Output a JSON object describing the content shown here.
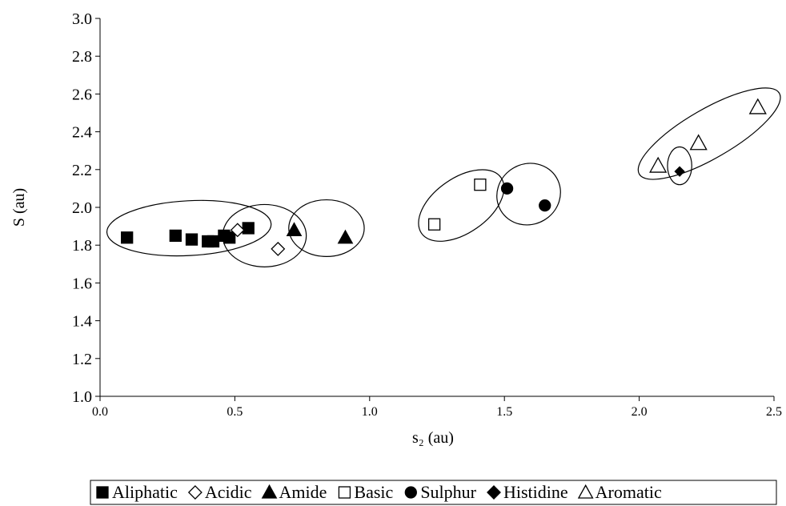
{
  "chart_data": {
    "type": "scatter",
    "xlabel": "s₂ (au)",
    "ylabel": "S (au)",
    "xlim": [
      0.0,
      2.5
    ],
    "ylim": [
      1.0,
      3.0
    ],
    "xticks": [
      "0.0",
      "0.5",
      "1.0",
      "1.5",
      "2.0",
      "2.5"
    ],
    "yticks": [
      "1.0",
      "1.2",
      "1.4",
      "1.6",
      "1.8",
      "2.0",
      "2.2",
      "2.4",
      "2.6",
      "2.8",
      "3.0"
    ],
    "grid": false,
    "legend_position": "bottom",
    "series": [
      {
        "name": "Aliphatic",
        "marker": "square-filled",
        "x": [
          0.1,
          0.28,
          0.34,
          0.4,
          0.42,
          0.46,
          0.48,
          0.55
        ],
        "y": [
          1.84,
          1.85,
          1.83,
          1.82,
          1.82,
          1.85,
          1.84,
          1.89
        ]
      },
      {
        "name": "Acidic",
        "marker": "diamond-open",
        "x": [
          0.51,
          0.66
        ],
        "y": [
          1.88,
          1.78
        ]
      },
      {
        "name": "Amide",
        "marker": "triangle-filled",
        "x": [
          0.72,
          0.91
        ],
        "y": [
          1.88,
          1.84
        ]
      },
      {
        "name": "Basic",
        "marker": "square-open",
        "x": [
          1.24,
          1.41
        ],
        "y": [
          1.91,
          2.12
        ]
      },
      {
        "name": "Sulphur",
        "marker": "circle-filled",
        "x": [
          1.51,
          1.65
        ],
        "y": [
          2.1,
          2.01
        ]
      },
      {
        "name": "Histidine",
        "marker": "diamond-filled",
        "x": [
          2.15
        ],
        "y": [
          2.19
        ]
      },
      {
        "name": "Aromatic",
        "marker": "triangle-open",
        "x": [
          2.07,
          2.22,
          2.44
        ],
        "y": [
          2.22,
          2.34,
          2.53
        ]
      }
    ],
    "group_ellipses": [
      {
        "group": "Aliphatic",
        "cx": 0.33,
        "cy": 1.89,
        "rx": 0.305,
        "ry": 0.145,
        "angle": -3
      },
      {
        "group": "Acidic",
        "cx": 0.61,
        "cy": 1.85,
        "rx": 0.155,
        "ry": 0.165,
        "angle": 0
      },
      {
        "group": "Amide",
        "cx": 0.84,
        "cy": 1.89,
        "rx": 0.14,
        "ry": 0.15,
        "angle": 0
      },
      {
        "group": "Basic",
        "cx": 1.34,
        "cy": 2.01,
        "rx": 0.18,
        "ry": 0.145,
        "angle": -35
      },
      {
        "group": "Sulphur",
        "cx": 1.59,
        "cy": 2.07,
        "rx": 0.12,
        "ry": 0.16,
        "angle": -30
      },
      {
        "group": "Histidine",
        "cx": 2.15,
        "cy": 2.22,
        "rx": 0.045,
        "ry": 0.1,
        "angle": 0
      },
      {
        "group": "Aromatic",
        "cx": 2.26,
        "cy": 2.39,
        "rx": 0.3,
        "ry": 0.13,
        "angle": -30
      }
    ]
  }
}
